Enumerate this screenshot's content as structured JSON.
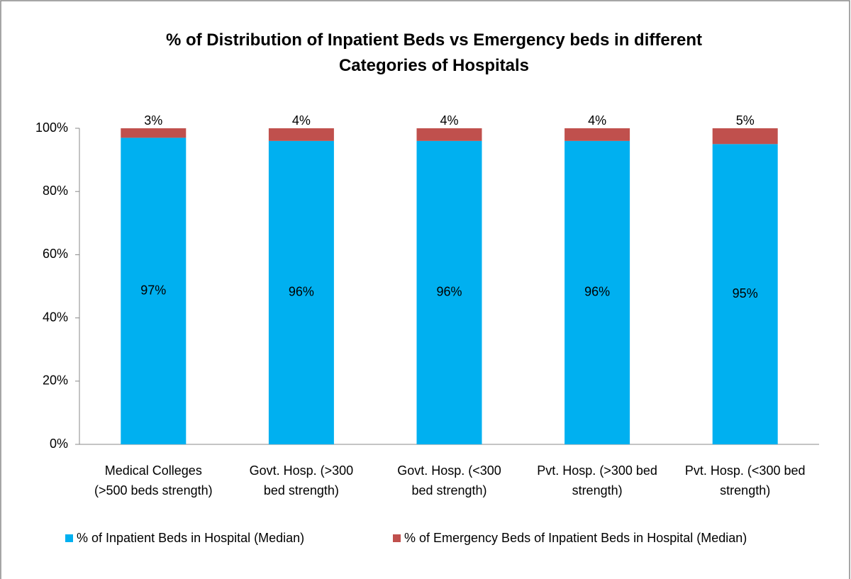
{
  "chart_data": {
    "type": "stacked_bar",
    "title": "% of Distribution of  Inpatient Beds vs Emergency beds in different Categories of Hospitals",
    "categories": [
      "Medical Colleges (>500 beds strength)",
      "Govt. Hosp. (>300 bed strength)",
      "Govt. Hosp. (<300 bed strength)",
      "Pvt. Hosp. (>300 bed strength)",
      "Pvt. Hosp. (<300 bed strength)"
    ],
    "series": [
      {
        "name": "% of  Inpatient Beds in Hospital (Median)",
        "color": "#00b0f0",
        "values": [
          97,
          96,
          96,
          96,
          95
        ],
        "value_labels": [
          "97%",
          "96%",
          "96%",
          "96%",
          "95%"
        ]
      },
      {
        "name": "% of Emergency Beds of Inpatient Beds in Hospital (Median)",
        "color": "#c0504d",
        "values": [
          3,
          4,
          4,
          4,
          5
        ],
        "value_labels": [
          "3%",
          "4%",
          "4%",
          "4%",
          "5%"
        ]
      }
    ],
    "ylim": [
      0,
      100
    ],
    "yticks": [
      {
        "value": 0,
        "label": "0%"
      },
      {
        "value": 20,
        "label": "20%"
      },
      {
        "value": 40,
        "label": "40%"
      },
      {
        "value": 60,
        "label": "60%"
      },
      {
        "value": 80,
        "label": "80%"
      },
      {
        "value": 100,
        "label": "100%"
      }
    ],
    "legend": "bottom"
  }
}
